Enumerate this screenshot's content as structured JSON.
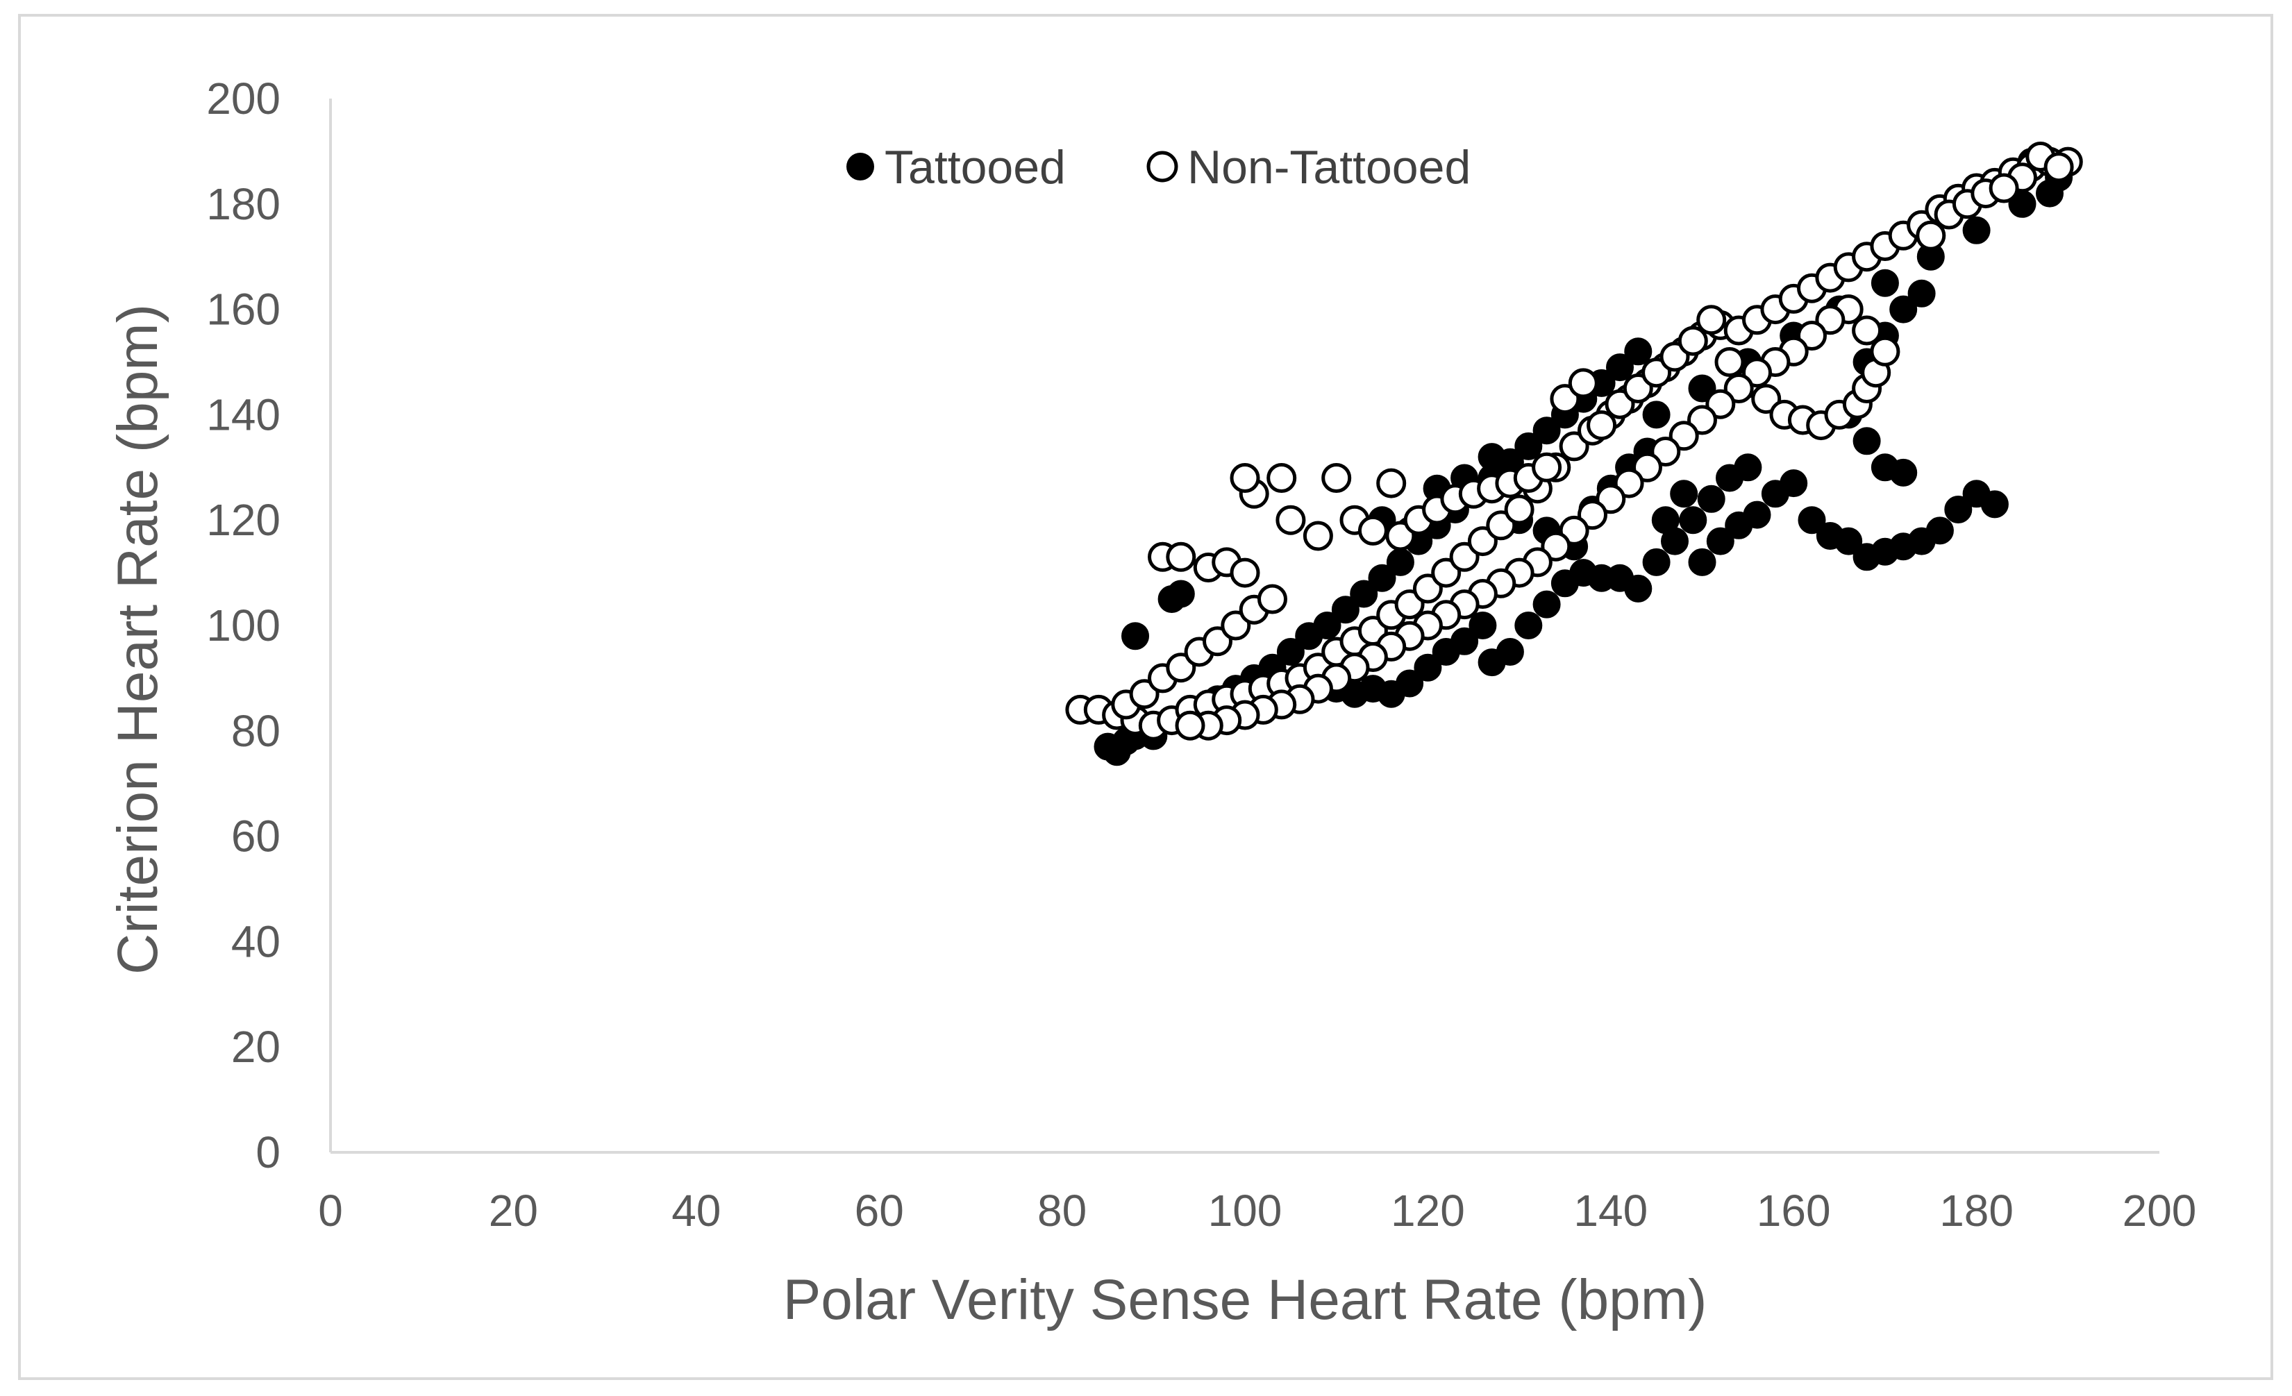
{
  "chart_data": {
    "type": "scatter",
    "title": "",
    "xlabel": "Polar Verity Sense Heart Rate (bpm)",
    "ylabel": "Criterion Heart Rate (bpm)",
    "xlim": [
      0,
      200
    ],
    "ylim": [
      0,
      200
    ],
    "xticks": [
      "0",
      "20",
      "40",
      "60",
      "80",
      "100",
      "120",
      "140",
      "160",
      "180",
      "200"
    ],
    "yticks": [
      "0",
      "20",
      "40",
      "60",
      "80",
      "100",
      "120",
      "140",
      "160",
      "180",
      "200"
    ],
    "grid": false,
    "legend_position": "top-center",
    "series": [
      {
        "name": "Tattooed",
        "marker": "filled-circle",
        "color": "#000000",
        "points": [
          [
            85,
            77
          ],
          [
            86,
            76
          ],
          [
            87,
            78
          ],
          [
            88,
            79
          ],
          [
            89,
            80
          ],
          [
            90,
            79
          ],
          [
            88,
            98
          ],
          [
            92,
            105
          ],
          [
            93,
            106
          ],
          [
            95,
            84
          ],
          [
            97,
            86
          ],
          [
            99,
            88
          ],
          [
            101,
            90
          ],
          [
            103,
            92
          ],
          [
            105,
            95
          ],
          [
            107,
            98
          ],
          [
            109,
            100
          ],
          [
            111,
            103
          ],
          [
            113,
            106
          ],
          [
            115,
            109
          ],
          [
            117,
            112
          ],
          [
            119,
            116
          ],
          [
            121,
            119
          ],
          [
            123,
            122
          ],
          [
            125,
            125
          ],
          [
            127,
            128
          ],
          [
            129,
            131
          ],
          [
            131,
            134
          ],
          [
            133,
            137
          ],
          [
            135,
            140
          ],
          [
            137,
            143
          ],
          [
            139,
            146
          ],
          [
            141,
            149
          ],
          [
            143,
            152
          ],
          [
            110,
            88
          ],
          [
            112,
            87
          ],
          [
            114,
            88
          ],
          [
            116,
            87
          ],
          [
            118,
            89
          ],
          [
            120,
            92
          ],
          [
            122,
            95
          ],
          [
            124,
            97
          ],
          [
            126,
            100
          ],
          [
            127,
            93
          ],
          [
            129,
            95
          ],
          [
            131,
            100
          ],
          [
            133,
            104
          ],
          [
            135,
            108
          ],
          [
            137,
            110
          ],
          [
            139,
            109
          ],
          [
            141,
            109
          ],
          [
            143,
            107
          ],
          [
            145,
            112
          ],
          [
            147,
            116
          ],
          [
            149,
            120
          ],
          [
            151,
            124
          ],
          [
            153,
            128
          ],
          [
            155,
            130
          ],
          [
            150,
            112
          ],
          [
            152,
            116
          ],
          [
            154,
            119
          ],
          [
            156,
            121
          ],
          [
            158,
            125
          ],
          [
            160,
            127
          ],
          [
            162,
            120
          ],
          [
            164,
            117
          ],
          [
            166,
            116
          ],
          [
            168,
            113
          ],
          [
            170,
            114
          ],
          [
            172,
            115
          ],
          [
            174,
            116
          ],
          [
            176,
            118
          ],
          [
            178,
            122
          ],
          [
            180,
            125
          ],
          [
            182,
            123
          ],
          [
            166,
            140
          ],
          [
            168,
            135
          ],
          [
            170,
            130
          ],
          [
            172,
            129
          ],
          [
            168,
            150
          ],
          [
            170,
            155
          ],
          [
            172,
            160
          ],
          [
            174,
            163
          ],
          [
            145,
            140
          ],
          [
            150,
            145
          ],
          [
            155,
            150
          ],
          [
            160,
            155
          ],
          [
            165,
            160
          ],
          [
            170,
            165
          ],
          [
            175,
            170
          ],
          [
            180,
            175
          ],
          [
            185,
            180
          ],
          [
            188,
            182
          ],
          [
            186,
            188
          ],
          [
            189,
            185
          ],
          [
            115,
            120
          ],
          [
            118,
            118
          ],
          [
            121,
            126
          ],
          [
            124,
            128
          ],
          [
            127,
            132
          ],
          [
            130,
            120
          ],
          [
            133,
            118
          ],
          [
            136,
            115
          ],
          [
            138,
            122
          ],
          [
            140,
            126
          ],
          [
            142,
            130
          ],
          [
            144,
            133
          ],
          [
            146,
            120
          ],
          [
            148,
            125
          ]
        ]
      },
      {
        "name": "Non-Tattooed",
        "marker": "open-circle",
        "color": "#000000",
        "points": [
          [
            82,
            84
          ],
          [
            84,
            84
          ],
          [
            86,
            83
          ],
          [
            88,
            82
          ],
          [
            90,
            81
          ],
          [
            92,
            82
          ],
          [
            94,
            84
          ],
          [
            96,
            85
          ],
          [
            98,
            86
          ],
          [
            100,
            87
          ],
          [
            102,
            88
          ],
          [
            104,
            89
          ],
          [
            106,
            90
          ],
          [
            108,
            92
          ],
          [
            110,
            95
          ],
          [
            112,
            97
          ],
          [
            114,
            99
          ],
          [
            116,
            102
          ],
          [
            118,
            104
          ],
          [
            120,
            107
          ],
          [
            122,
            110
          ],
          [
            124,
            113
          ],
          [
            126,
            116
          ],
          [
            128,
            119
          ],
          [
            130,
            122
          ],
          [
            132,
            126
          ],
          [
            134,
            130
          ],
          [
            136,
            134
          ],
          [
            138,
            137
          ],
          [
            140,
            140
          ],
          [
            142,
            143
          ],
          [
            144,
            146
          ],
          [
            146,
            149
          ],
          [
            148,
            152
          ],
          [
            150,
            155
          ],
          [
            152,
            157
          ],
          [
            154,
            156
          ],
          [
            156,
            158
          ],
          [
            158,
            160
          ],
          [
            160,
            162
          ],
          [
            162,
            164
          ],
          [
            164,
            166
          ],
          [
            166,
            168
          ],
          [
            168,
            170
          ],
          [
            170,
            172
          ],
          [
            172,
            174
          ],
          [
            174,
            176
          ],
          [
            176,
            179
          ],
          [
            178,
            181
          ],
          [
            180,
            183
          ],
          [
            182,
            184
          ],
          [
            184,
            186
          ],
          [
            186,
            187
          ],
          [
            188,
            188
          ],
          [
            190,
            188
          ],
          [
            185,
            185
          ],
          [
            87,
            85
          ],
          [
            89,
            87
          ],
          [
            91,
            90
          ],
          [
            93,
            92
          ],
          [
            95,
            95
          ],
          [
            97,
            97
          ],
          [
            99,
            100
          ],
          [
            101,
            103
          ],
          [
            103,
            105
          ],
          [
            91,
            113
          ],
          [
            93,
            113
          ],
          [
            96,
            111
          ],
          [
            98,
            112
          ],
          [
            100,
            110
          ],
          [
            101,
            125
          ],
          [
            100,
            128
          ],
          [
            104,
            128
          ],
          [
            105,
            120
          ],
          [
            108,
            117
          ],
          [
            110,
            128
          ],
          [
            112,
            120
          ],
          [
            114,
            118
          ],
          [
            116,
            127
          ],
          [
            117,
            117
          ],
          [
            119,
            120
          ],
          [
            121,
            122
          ],
          [
            123,
            124
          ],
          [
            125,
            125
          ],
          [
            127,
            126
          ],
          [
            129,
            127
          ],
          [
            131,
            128
          ],
          [
            133,
            130
          ],
          [
            135,
            143
          ],
          [
            137,
            146
          ],
          [
            139,
            138
          ],
          [
            141,
            142
          ],
          [
            143,
            145
          ],
          [
            145,
            148
          ],
          [
            147,
            151
          ],
          [
            149,
            154
          ],
          [
            151,
            158
          ],
          [
            153,
            150
          ],
          [
            155,
            146
          ],
          [
            157,
            143
          ],
          [
            159,
            140
          ],
          [
            161,
            139
          ],
          [
            163,
            138
          ],
          [
            165,
            140
          ],
          [
            167,
            142
          ],
          [
            168,
            145
          ],
          [
            169,
            148
          ],
          [
            170,
            152
          ],
          [
            168,
            156
          ],
          [
            166,
            160
          ],
          [
            164,
            158
          ],
          [
            162,
            155
          ],
          [
            160,
            152
          ],
          [
            158,
            150
          ],
          [
            156,
            148
          ],
          [
            154,
            145
          ],
          [
            152,
            142
          ],
          [
            150,
            139
          ],
          [
            148,
            136
          ],
          [
            146,
            133
          ],
          [
            144,
            130
          ],
          [
            142,
            127
          ],
          [
            140,
            124
          ],
          [
            138,
            121
          ],
          [
            136,
            118
          ],
          [
            134,
            115
          ],
          [
            132,
            112
          ],
          [
            130,
            110
          ],
          [
            128,
            108
          ],
          [
            126,
            106
          ],
          [
            124,
            104
          ],
          [
            122,
            102
          ],
          [
            120,
            100
          ],
          [
            118,
            98
          ],
          [
            116,
            96
          ],
          [
            114,
            94
          ],
          [
            112,
            92
          ],
          [
            110,
            90
          ],
          [
            108,
            88
          ],
          [
            106,
            86
          ],
          [
            104,
            85
          ],
          [
            102,
            84
          ],
          [
            100,
            83
          ],
          [
            98,
            82
          ],
          [
            96,
            81
          ],
          [
            94,
            81
          ],
          [
            175,
            174
          ],
          [
            177,
            178
          ],
          [
            179,
            180
          ],
          [
            181,
            182
          ],
          [
            183,
            183
          ],
          [
            187,
            189
          ],
          [
            189,
            187
          ]
        ]
      }
    ]
  }
}
